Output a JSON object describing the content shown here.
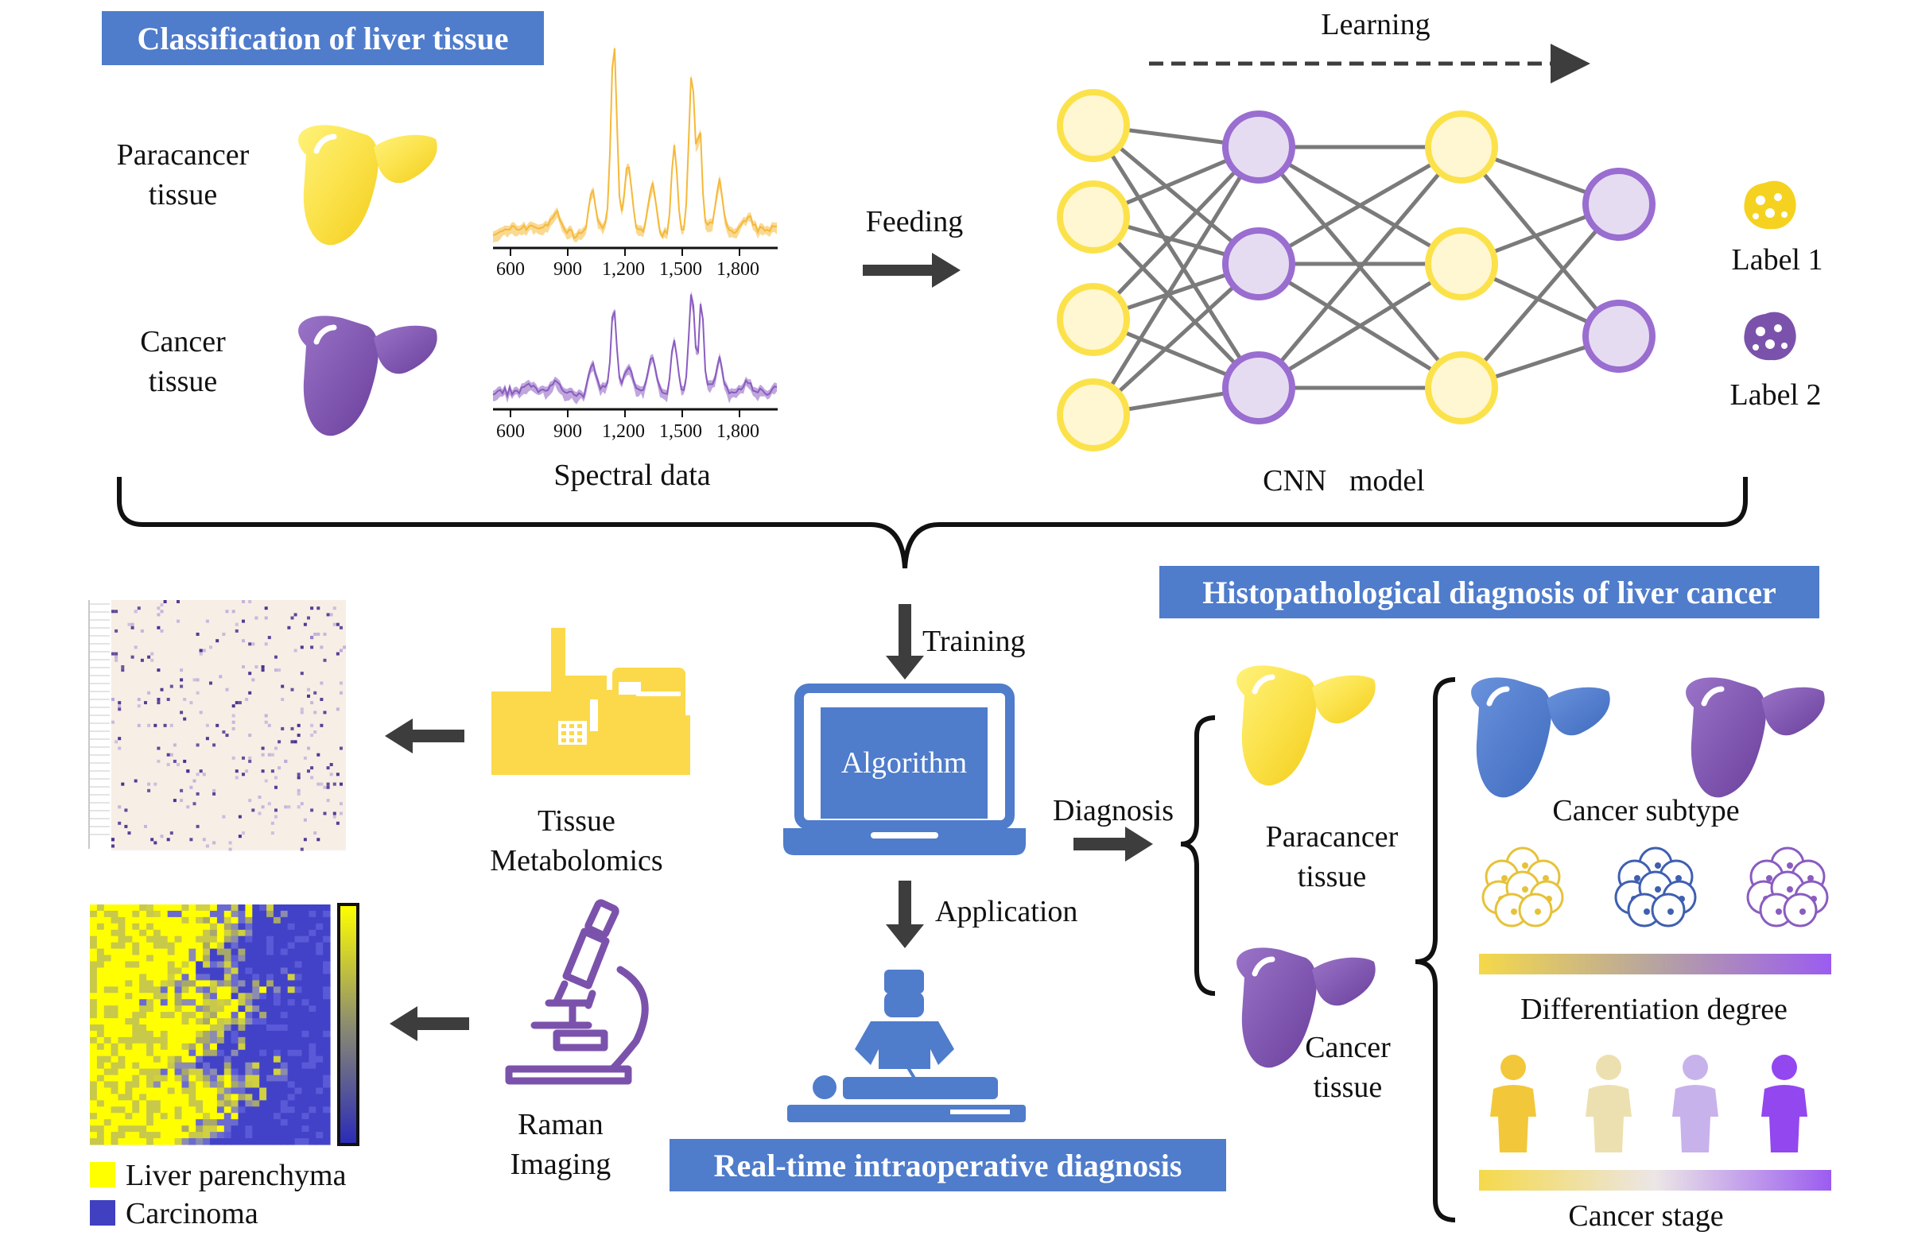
{
  "colors": {
    "banner": "#4f7ccb",
    "yellow": "#fbe24a",
    "purple": "#7b52ab",
    "blue": "#4f7ccb",
    "arrow": "#3d3d3d",
    "cnn_yellow_fill": "#fff6d2",
    "cnn_purple_fill": "#e5dcf2",
    "edge_gray": "#7a7a7a"
  },
  "top": {
    "banner": "Classification of liver tissue",
    "paracancer_label_line1": "Paracancer",
    "paracancer_label_line2": "tissue",
    "cancer_label_line1": "Cancer",
    "cancer_label_line2": "tissue",
    "spectral_ticks": [
      "600",
      "900",
      "1,200",
      "1,500",
      "1,800"
    ],
    "spectral_caption": "Spectral data",
    "feeding": "Feeding",
    "learning": "Learning",
    "cnn_caption": "CNN   model",
    "label1": "Label 1",
    "label2": "Label 2"
  },
  "middle": {
    "training": "Training",
    "algorithm": "Algorithm",
    "application": "Application",
    "diagnosis": "Diagnosis",
    "tissue_metabolomics_line1": "Tissue",
    "tissue_metabolomics_line2": "Metabolomics",
    "raman_line1": "Raman",
    "raman_line2": "Imaging",
    "legend_liver": "Liver parenchyma",
    "legend_carcinoma": "Carcinoma",
    "realtime_banner": "Real-time intraoperative diagnosis"
  },
  "right": {
    "banner": "Histopathological diagnosis of  liver cancer",
    "paracancer_line1": "Paracancer",
    "paracancer_line2": "tissue",
    "cancer_line1": "Cancer",
    "cancer_line2": "tissue",
    "cancer_subtype": "Cancer subtype",
    "differentiation_degree": "Differentiation degree",
    "cancer_stage": "Cancer stage"
  }
}
